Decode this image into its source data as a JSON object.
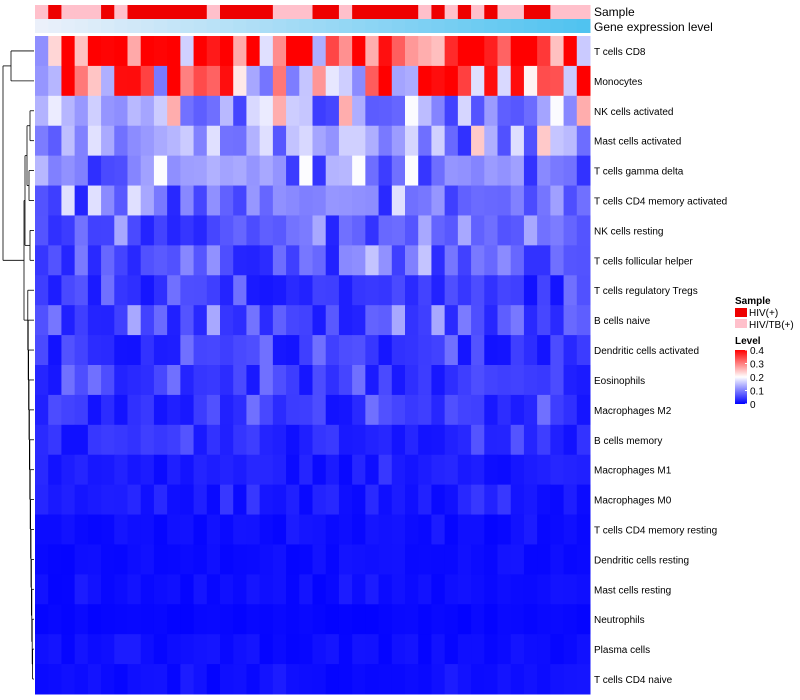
{
  "chart_data": {
    "type": "heatmap",
    "columns": 42,
    "annotation_titles": {
      "sample": "Sample",
      "expression": "Gene expression level"
    },
    "rows": [
      "T cells CD8",
      "Monocytes",
      "NK cells activated",
      "Mast cells activated",
      "T cells gamma delta",
      "T cells CD4 memory activated",
      "NK cells resting",
      "T cells follicular helper",
      "T cells regulatory  Tregs",
      "B cells naive",
      "Dendritic cells activated",
      "Eosinophils",
      "Macrophages M2",
      "B cells memory",
      "Macrophages M1",
      "Macrophages M0",
      "T cells CD4 memory resting",
      "Dendritic cells resting",
      "Mast cells resting",
      "Neutrophils",
      "Plasma cells",
      "T cells CD4 naive"
    ],
    "sample_groups": [
      "HIV(+)",
      "HIV/TB(+)"
    ],
    "sample_colors": {
      "HIV(+)": "#ee0000",
      "HIV/TB(+)": "#ffc0cb"
    },
    "sample_assignments": [
      "HIV/TB(+)",
      "HIV(+)",
      "HIV/TB(+)",
      "HIV/TB(+)",
      "HIV/TB(+)",
      "HIV(+)",
      "HIV/TB(+)",
      "HIV(+)",
      "HIV(+)",
      "HIV(+)",
      "HIV(+)",
      "HIV(+)",
      "HIV(+)",
      "HIV/TB(+)",
      "HIV(+)",
      "HIV(+)",
      "HIV(+)",
      "HIV(+)",
      "HIV/TB(+)",
      "HIV/TB(+)",
      "HIV/TB(+)",
      "HIV(+)",
      "HIV(+)",
      "HIV/TB(+)",
      "HIV(+)",
      "HIV(+)",
      "HIV(+)",
      "HIV(+)",
      "HIV(+)",
      "HIV/TB(+)",
      "HIV(+)",
      "HIV/TB(+)",
      "HIV(+)",
      "HIV/TB(+)",
      "HIV(+)",
      "HIV/TB(+)",
      "HIV/TB(+)",
      "HIV(+)",
      "HIV(+)",
      "HIV/TB(+)",
      "HIV/TB(+)",
      "HIV/TB(+)"
    ],
    "value_range": [
      0,
      0.4
    ],
    "color_scale": [
      "#0000ff",
      "#ffffff",
      "#ff0000"
    ],
    "legend": {
      "sample_title": "Sample",
      "level_title": "Level",
      "level_ticks": [
        0.4,
        0.3,
        0.2,
        0.1,
        0
      ],
      "position": "right"
    },
    "row_means": [
      0.32,
      0.26,
      0.12,
      0.11,
      0.09,
      0.08,
      0.06,
      0.07,
      0.04,
      0.06,
      0.04,
      0.04,
      0.04,
      0.03,
      0.02,
      0.02,
      0.01,
      0.01,
      0.01,
      0.005,
      0.01,
      0.01
    ]
  }
}
